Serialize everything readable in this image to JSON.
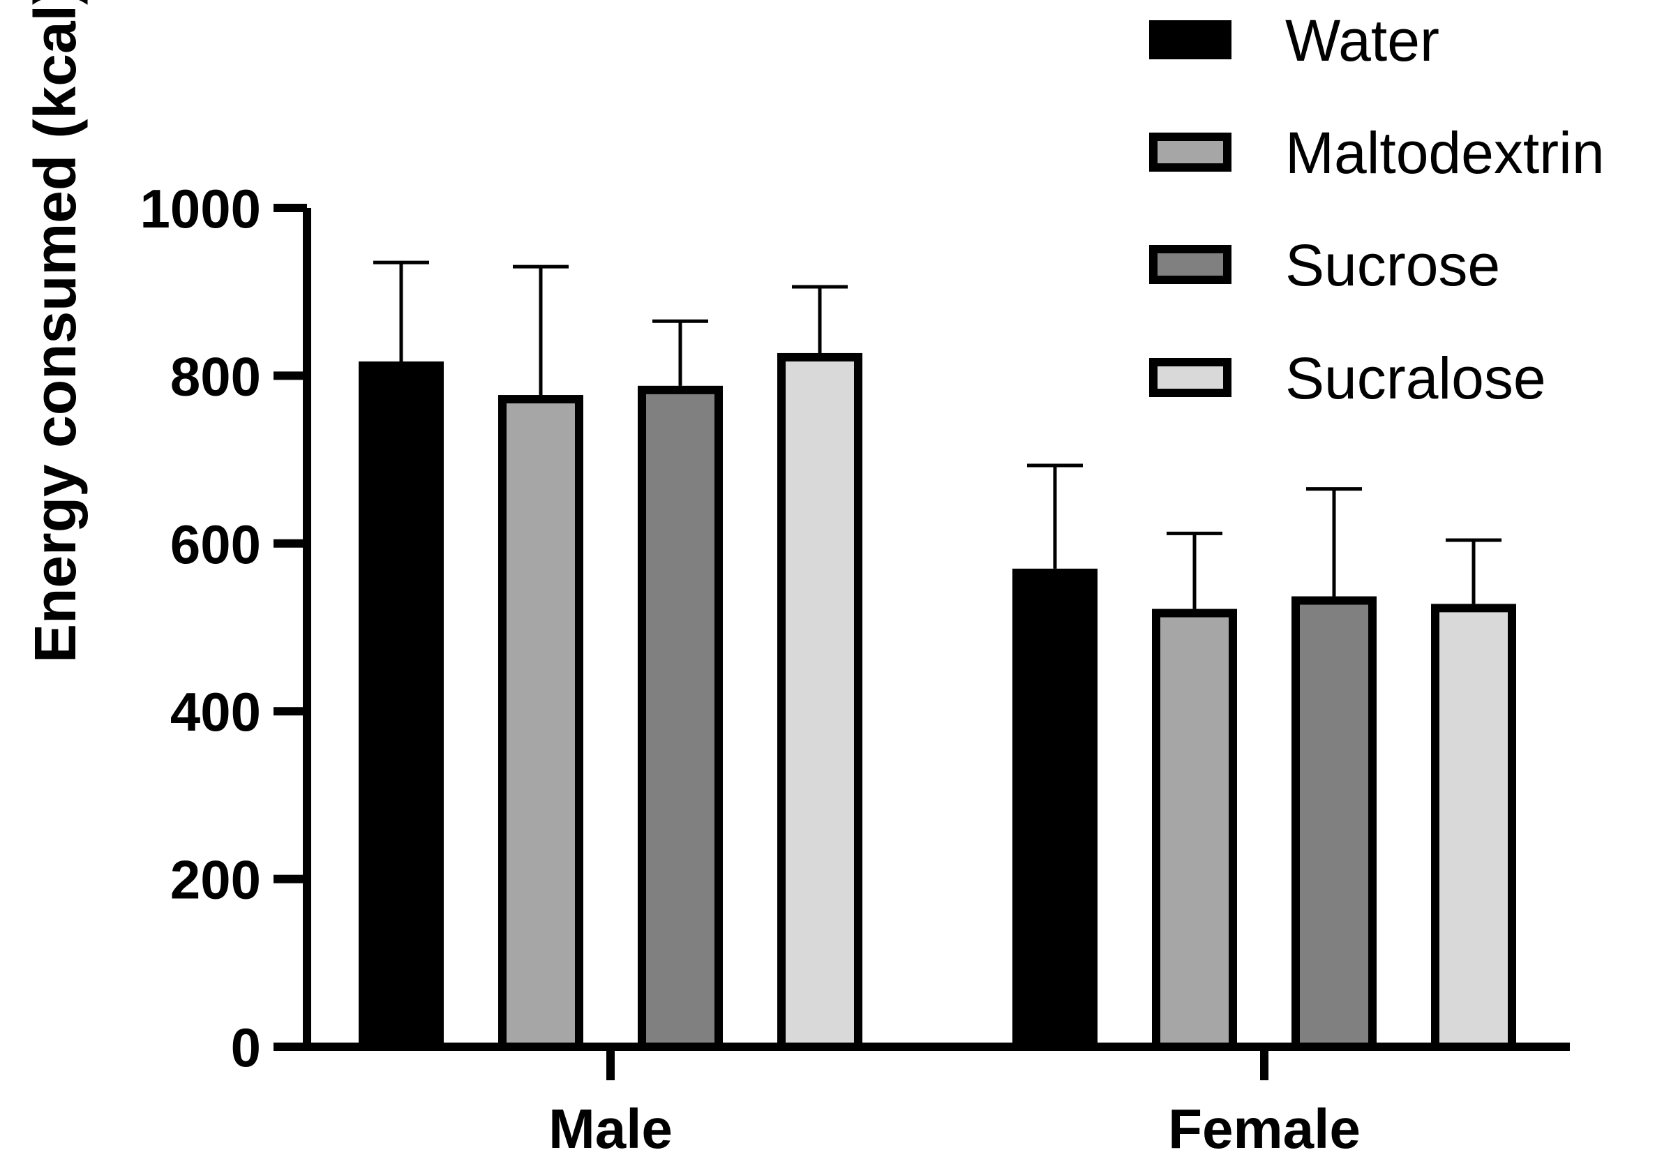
{
  "chart_data": {
    "type": "bar",
    "categories": [
      "Male",
      "Female"
    ],
    "series": [
      {
        "name": "Water",
        "values": [
          817,
          570
        ],
        "errors": [
          118,
          123
        ],
        "color": "#000000"
      },
      {
        "name": "Maltodextrin",
        "values": [
          777,
          522
        ],
        "errors": [
          153,
          90
        ],
        "color": "#a6a6a6"
      },
      {
        "name": "Sucrose",
        "values": [
          788,
          537
        ],
        "errors": [
          77,
          128
        ],
        "color": "#808080"
      },
      {
        "name": "Sucralose",
        "values": [
          827,
          528
        ],
        "errors": [
          79,
          76
        ],
        "color": "#d9d9d9"
      }
    ],
    "title": "",
    "xlabel": "",
    "ylabel": "Energy consumed (kcal)",
    "ylim": [
      0,
      1000
    ],
    "yticks": [
      "0",
      "200",
      "400",
      "600",
      "800",
      "1000"
    ],
    "grid": false,
    "legend_position": "top-right",
    "error_bars": "upper"
  }
}
